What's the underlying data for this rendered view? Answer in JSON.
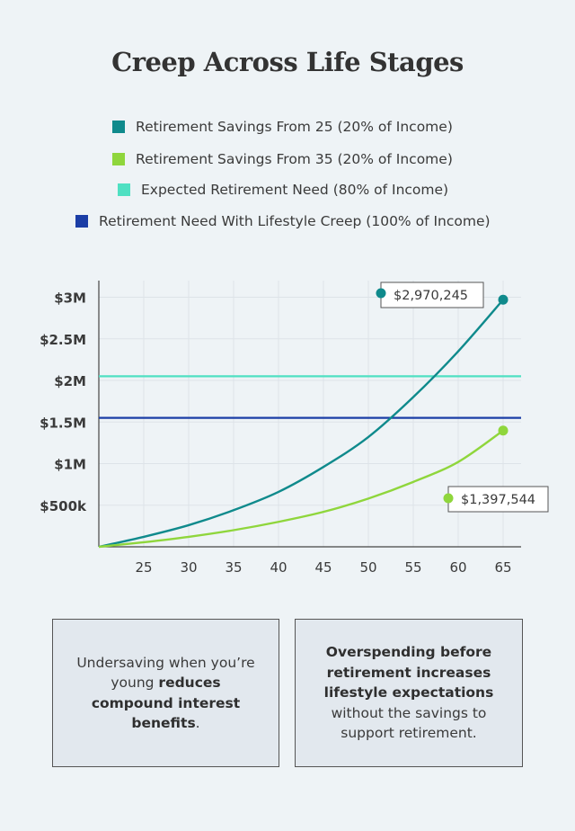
{
  "chart_data": {
    "type": "line",
    "title": "Creep Across Life Stages",
    "xlabel": "",
    "ylabel": "",
    "xlim": [
      20,
      67
    ],
    "ylim": [
      0,
      3200000
    ],
    "x_ticks": [
      25,
      30,
      35,
      40,
      45,
      50,
      55,
      60,
      65
    ],
    "y_ticks": [
      {
        "value": 500000,
        "label": "$500k"
      },
      {
        "value": 1000000,
        "label": "$1M"
      },
      {
        "value": 1500000,
        "label": "$1.5M"
      },
      {
        "value": 2000000,
        "label": "$2M"
      },
      {
        "value": 2500000,
        "label": "$2.5M"
      },
      {
        "value": 3000000,
        "label": "$3M"
      }
    ],
    "grid": true,
    "legend_position": "top",
    "series": [
      {
        "name": "Retirement Savings From 25 (20% of Income)",
        "kind": "curve",
        "color": "#0f8a8c",
        "x": [
          20,
          25,
          30,
          35,
          40,
          45,
          50,
          55,
          60,
          65
        ],
        "y": [
          0,
          120000,
          260000,
          440000,
          660000,
          960000,
          1320000,
          1800000,
          2350000,
          2970245
        ],
        "end_label": "$2,970,245"
      },
      {
        "name": "Retirement Savings From 35 (20% of Income)",
        "kind": "curve",
        "color": "#8fd63c",
        "x": [
          20,
          25,
          30,
          35,
          40,
          45,
          50,
          55,
          60,
          65
        ],
        "y": [
          0,
          55000,
          120000,
          200000,
          300000,
          420000,
          580000,
          780000,
          1020000,
          1397544
        ],
        "end_label": "$1,397,544"
      },
      {
        "name": "Expected Retirement Need (80% of Income)",
        "kind": "hline",
        "color": "#4fe0c2",
        "x": [
          20,
          67
        ],
        "y": [
          2050000,
          2050000
        ]
      },
      {
        "name": "Retirement Need With Lifestyle Creep (100% of Income)",
        "kind": "hline",
        "color": "#1b3ea6",
        "x": [
          20,
          67
        ],
        "y": [
          1550000,
          1550000
        ]
      }
    ]
  },
  "notes": {
    "left": {
      "pre": "Undersaving when you’re young ",
      "bold": "reduces compound interest benefits",
      "post": "."
    },
    "right": {
      "bold": "Overspending before retirement increases lifestyle expectations",
      "post": " without the savings to support retirement."
    }
  }
}
